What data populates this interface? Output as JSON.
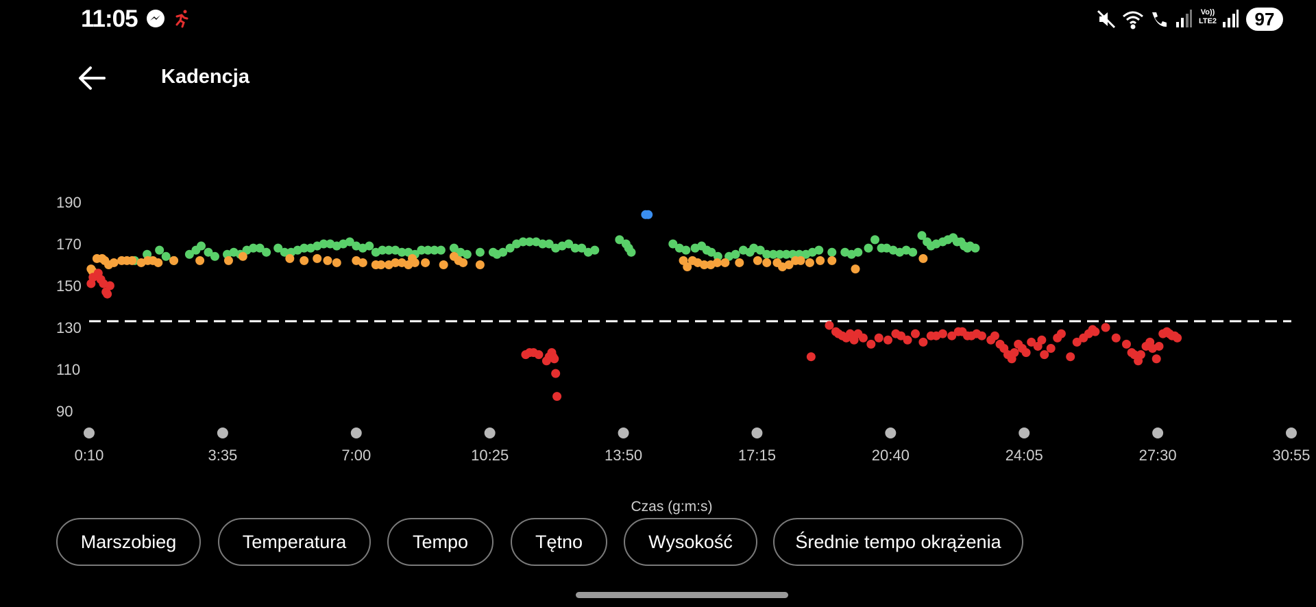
{
  "status_bar": {
    "time": "11:05",
    "battery": "97",
    "notification_icons": [
      "messenger-icon",
      "running-icon"
    ],
    "system_icons": [
      "mute-icon",
      "wifi-icon",
      "wifi-call-icon",
      "signal-icon",
      "volte-icon",
      "signal-icon"
    ],
    "volte_label": "Vo)) LTE2"
  },
  "app_bar": {
    "title": "Kadencja",
    "back_icon": "arrow-left-icon"
  },
  "chart_data": {
    "type": "scatter",
    "xlabel": "Czas (g:m:s)",
    "ylabel": "",
    "x_ticks": [
      "0:10",
      "3:35",
      "7:00",
      "10:25",
      "13:50",
      "17:15",
      "20:40",
      "24:05",
      "27:30",
      "30:55"
    ],
    "y_ticks": [
      190,
      170,
      150,
      130,
      110,
      90
    ],
    "ylim": [
      80,
      200
    ],
    "xlim": [
      0,
      1845
    ],
    "average_line": 133,
    "grid": false,
    "colors": {
      "green": "#5ad06a",
      "orange": "#f7a23c",
      "red": "#e52f2f",
      "blue": "#3a8ef0"
    },
    "series": [
      {
        "color": "green",
        "points": [
          [
            70,
            162
          ],
          [
            89,
            165
          ],
          [
            108,
            167
          ],
          [
            118,
            164
          ],
          [
            130,
            162
          ],
          [
            154,
            165
          ],
          [
            164,
            167
          ],
          [
            172,
            169
          ],
          [
            183,
            166
          ],
          [
            193,
            164
          ],
          [
            212,
            165
          ],
          [
            222,
            166
          ],
          [
            232,
            165
          ],
          [
            242,
            167
          ],
          [
            252,
            168
          ],
          [
            262,
            168
          ],
          [
            272,
            166
          ],
          [
            290,
            168
          ],
          [
            300,
            166
          ],
          [
            310,
            166
          ],
          [
            320,
            167
          ],
          [
            330,
            168
          ],
          [
            340,
            168
          ],
          [
            350,
            169
          ],
          [
            360,
            170
          ],
          [
            370,
            170
          ],
          [
            380,
            169
          ],
          [
            390,
            170
          ],
          [
            400,
            171
          ],
          [
            410,
            169
          ],
          [
            420,
            168
          ],
          [
            430,
            169
          ],
          [
            440,
            166
          ],
          [
            450,
            167
          ],
          [
            460,
            167
          ],
          [
            470,
            167
          ],
          [
            480,
            166
          ],
          [
            490,
            166
          ],
          [
            500,
            165
          ],
          [
            510,
            167
          ],
          [
            520,
            167
          ],
          [
            530,
            167
          ],
          [
            540,
            167
          ],
          [
            560,
            168
          ],
          [
            570,
            166
          ],
          [
            580,
            165
          ],
          [
            600,
            166
          ],
          [
            620,
            166
          ],
          [
            626,
            165
          ],
          [
            635,
            166
          ],
          [
            646,
            168
          ],
          [
            656,
            170
          ],
          [
            666,
            171
          ],
          [
            676,
            171
          ],
          [
            686,
            171
          ],
          [
            696,
            170
          ],
          [
            706,
            170
          ],
          [
            716,
            168
          ],
          [
            726,
            169
          ],
          [
            736,
            170
          ],
          [
            746,
            168
          ],
          [
            756,
            168
          ],
          [
            766,
            166
          ],
          [
            776,
            167
          ],
          [
            814,
            172
          ],
          [
            824,
            170
          ],
          [
            828,
            168
          ],
          [
            832,
            166
          ],
          [
            896,
            170
          ],
          [
            906,
            168
          ],
          [
            916,
            167
          ],
          [
            930,
            168
          ],
          [
            940,
            169
          ],
          [
            948,
            167
          ],
          [
            955,
            166
          ],
          [
            965,
            164
          ],
          [
            982,
            164
          ],
          [
            992,
            165
          ],
          [
            1004,
            167
          ],
          [
            1014,
            166
          ],
          [
            1020,
            168
          ],
          [
            1030,
            167
          ],
          [
            1040,
            165
          ],
          [
            1050,
            165
          ],
          [
            1060,
            165
          ],
          [
            1070,
            165
          ],
          [
            1080,
            165
          ],
          [
            1090,
            165
          ],
          [
            1100,
            165
          ],
          [
            1110,
            166
          ],
          [
            1120,
            167
          ],
          [
            1140,
            166
          ],
          [
            1160,
            166
          ],
          [
            1170,
            165
          ],
          [
            1180,
            166
          ],
          [
            1196,
            168
          ],
          [
            1206,
            172
          ],
          [
            1216,
            168
          ],
          [
            1224,
            168
          ],
          [
            1234,
            167
          ],
          [
            1244,
            166
          ],
          [
            1254,
            167
          ],
          [
            1264,
            166
          ],
          [
            1278,
            174
          ],
          [
            1286,
            171
          ],
          [
            1292,
            169
          ],
          [
            1300,
            170
          ],
          [
            1310,
            171
          ],
          [
            1318,
            172
          ],
          [
            1326,
            173
          ],
          [
            1332,
            171
          ],
          [
            1338,
            171
          ],
          [
            1343,
            169
          ],
          [
            1348,
            168
          ],
          [
            1352,
            169
          ],
          [
            1360,
            168
          ]
        ]
      },
      {
        "color": "orange",
        "points": [
          [
            3,
            158
          ],
          [
            5,
            157
          ],
          [
            12,
            163
          ],
          [
            20,
            163
          ],
          [
            24,
            162
          ],
          [
            30,
            160
          ],
          [
            38,
            161
          ],
          [
            50,
            162
          ],
          [
            58,
            162
          ],
          [
            66,
            162
          ],
          [
            80,
            161
          ],
          [
            90,
            162
          ],
          [
            98,
            162
          ],
          [
            106,
            161
          ],
          [
            130,
            162
          ],
          [
            170,
            162
          ],
          [
            214,
            162
          ],
          [
            236,
            164
          ],
          [
            308,
            163
          ],
          [
            330,
            162
          ],
          [
            350,
            163
          ],
          [
            366,
            162
          ],
          [
            380,
            161
          ],
          [
            410,
            162
          ],
          [
            420,
            161
          ],
          [
            440,
            160
          ],
          [
            448,
            160
          ],
          [
            460,
            160
          ],
          [
            470,
            161
          ],
          [
            480,
            161
          ],
          [
            490,
            160
          ],
          [
            496,
            163
          ],
          [
            500,
            161
          ],
          [
            516,
            161
          ],
          [
            544,
            160
          ],
          [
            560,
            164
          ],
          [
            567,
            162
          ],
          [
            574,
            161
          ],
          [
            600,
            160
          ],
          [
            912,
            162
          ],
          [
            918,
            159
          ],
          [
            926,
            162
          ],
          [
            934,
            161
          ],
          [
            944,
            160
          ],
          [
            954,
            160
          ],
          [
            964,
            161
          ],
          [
            976,
            161
          ],
          [
            998,
            161
          ],
          [
            1026,
            162
          ],
          [
            1040,
            161
          ],
          [
            1056,
            161
          ],
          [
            1064,
            159
          ],
          [
            1074,
            160
          ],
          [
            1084,
            162
          ],
          [
            1092,
            162
          ],
          [
            1106,
            161
          ],
          [
            1122,
            162
          ],
          [
            1140,
            162
          ],
          [
            1176,
            158
          ],
          [
            1280,
            163
          ]
        ]
      },
      {
        "color": "red",
        "points": [
          [
            3,
            151
          ],
          [
            6,
            154
          ],
          [
            14,
            156
          ],
          [
            18,
            153
          ],
          [
            22,
            151
          ],
          [
            26,
            147
          ],
          [
            28,
            146
          ],
          [
            32,
            150
          ],
          [
            670,
            117
          ],
          [
            676,
            118
          ],
          [
            682,
            118
          ],
          [
            690,
            117
          ],
          [
            702,
            114
          ],
          [
            706,
            116
          ],
          [
            710,
            118
          ],
          [
            712,
            116
          ],
          [
            714,
            115
          ],
          [
            716,
            108
          ],
          [
            718,
            97
          ],
          [
            1108,
            116
          ],
          [
            1136,
            131
          ],
          [
            1146,
            128
          ],
          [
            1150,
            127
          ],
          [
            1156,
            126
          ],
          [
            1162,
            125
          ],
          [
            1168,
            127
          ],
          [
            1174,
            124
          ],
          [
            1180,
            127
          ],
          [
            1188,
            125
          ],
          [
            1200,
            122
          ],
          [
            1212,
            125
          ],
          [
            1226,
            124
          ],
          [
            1238,
            127
          ],
          [
            1246,
            126
          ],
          [
            1256,
            124
          ],
          [
            1268,
            127
          ],
          [
            1280,
            123
          ],
          [
            1292,
            126
          ],
          [
            1300,
            126
          ],
          [
            1310,
            127
          ],
          [
            1324,
            126
          ],
          [
            1334,
            128
          ],
          [
            1340,
            128
          ],
          [
            1348,
            126
          ],
          [
            1354,
            126
          ],
          [
            1362,
            127
          ],
          [
            1370,
            126
          ],
          [
            1384,
            124
          ],
          [
            1390,
            126
          ],
          [
            1398,
            122
          ],
          [
            1404,
            120
          ],
          [
            1410,
            117
          ],
          [
            1416,
            115
          ],
          [
            1420,
            118
          ],
          [
            1426,
            122
          ],
          [
            1432,
            120
          ],
          [
            1438,
            118
          ],
          [
            1446,
            123
          ],
          [
            1456,
            121
          ],
          [
            1462,
            124
          ],
          [
            1466,
            117
          ],
          [
            1476,
            120
          ],
          [
            1486,
            125
          ],
          [
            1492,
            127
          ],
          [
            1506,
            116
          ],
          [
            1516,
            123
          ],
          [
            1526,
            125
          ],
          [
            1534,
            127
          ],
          [
            1540,
            129
          ],
          [
            1544,
            128
          ],
          [
            1560,
            130
          ],
          [
            1576,
            125
          ],
          [
            1592,
            122
          ],
          [
            1600,
            118
          ],
          [
            1604,
            117
          ],
          [
            1610,
            114
          ],
          [
            1614,
            117
          ],
          [
            1622,
            121
          ],
          [
            1628,
            123
          ],
          [
            1632,
            120
          ],
          [
            1638,
            115
          ],
          [
            1642,
            121
          ],
          [
            1648,
            127
          ],
          [
            1654,
            128
          ],
          [
            1658,
            127
          ],
          [
            1662,
            126
          ],
          [
            1666,
            126
          ],
          [
            1670,
            125
          ]
        ]
      },
      {
        "color": "blue",
        "points": [
          [
            854,
            184
          ],
          [
            858,
            184
          ]
        ]
      }
    ]
  },
  "tabs": [
    "Marszobieg",
    "Temperatura",
    "Tempo",
    "Tętno",
    "Wysokość",
    "Średnie tempo okrążenia"
  ]
}
